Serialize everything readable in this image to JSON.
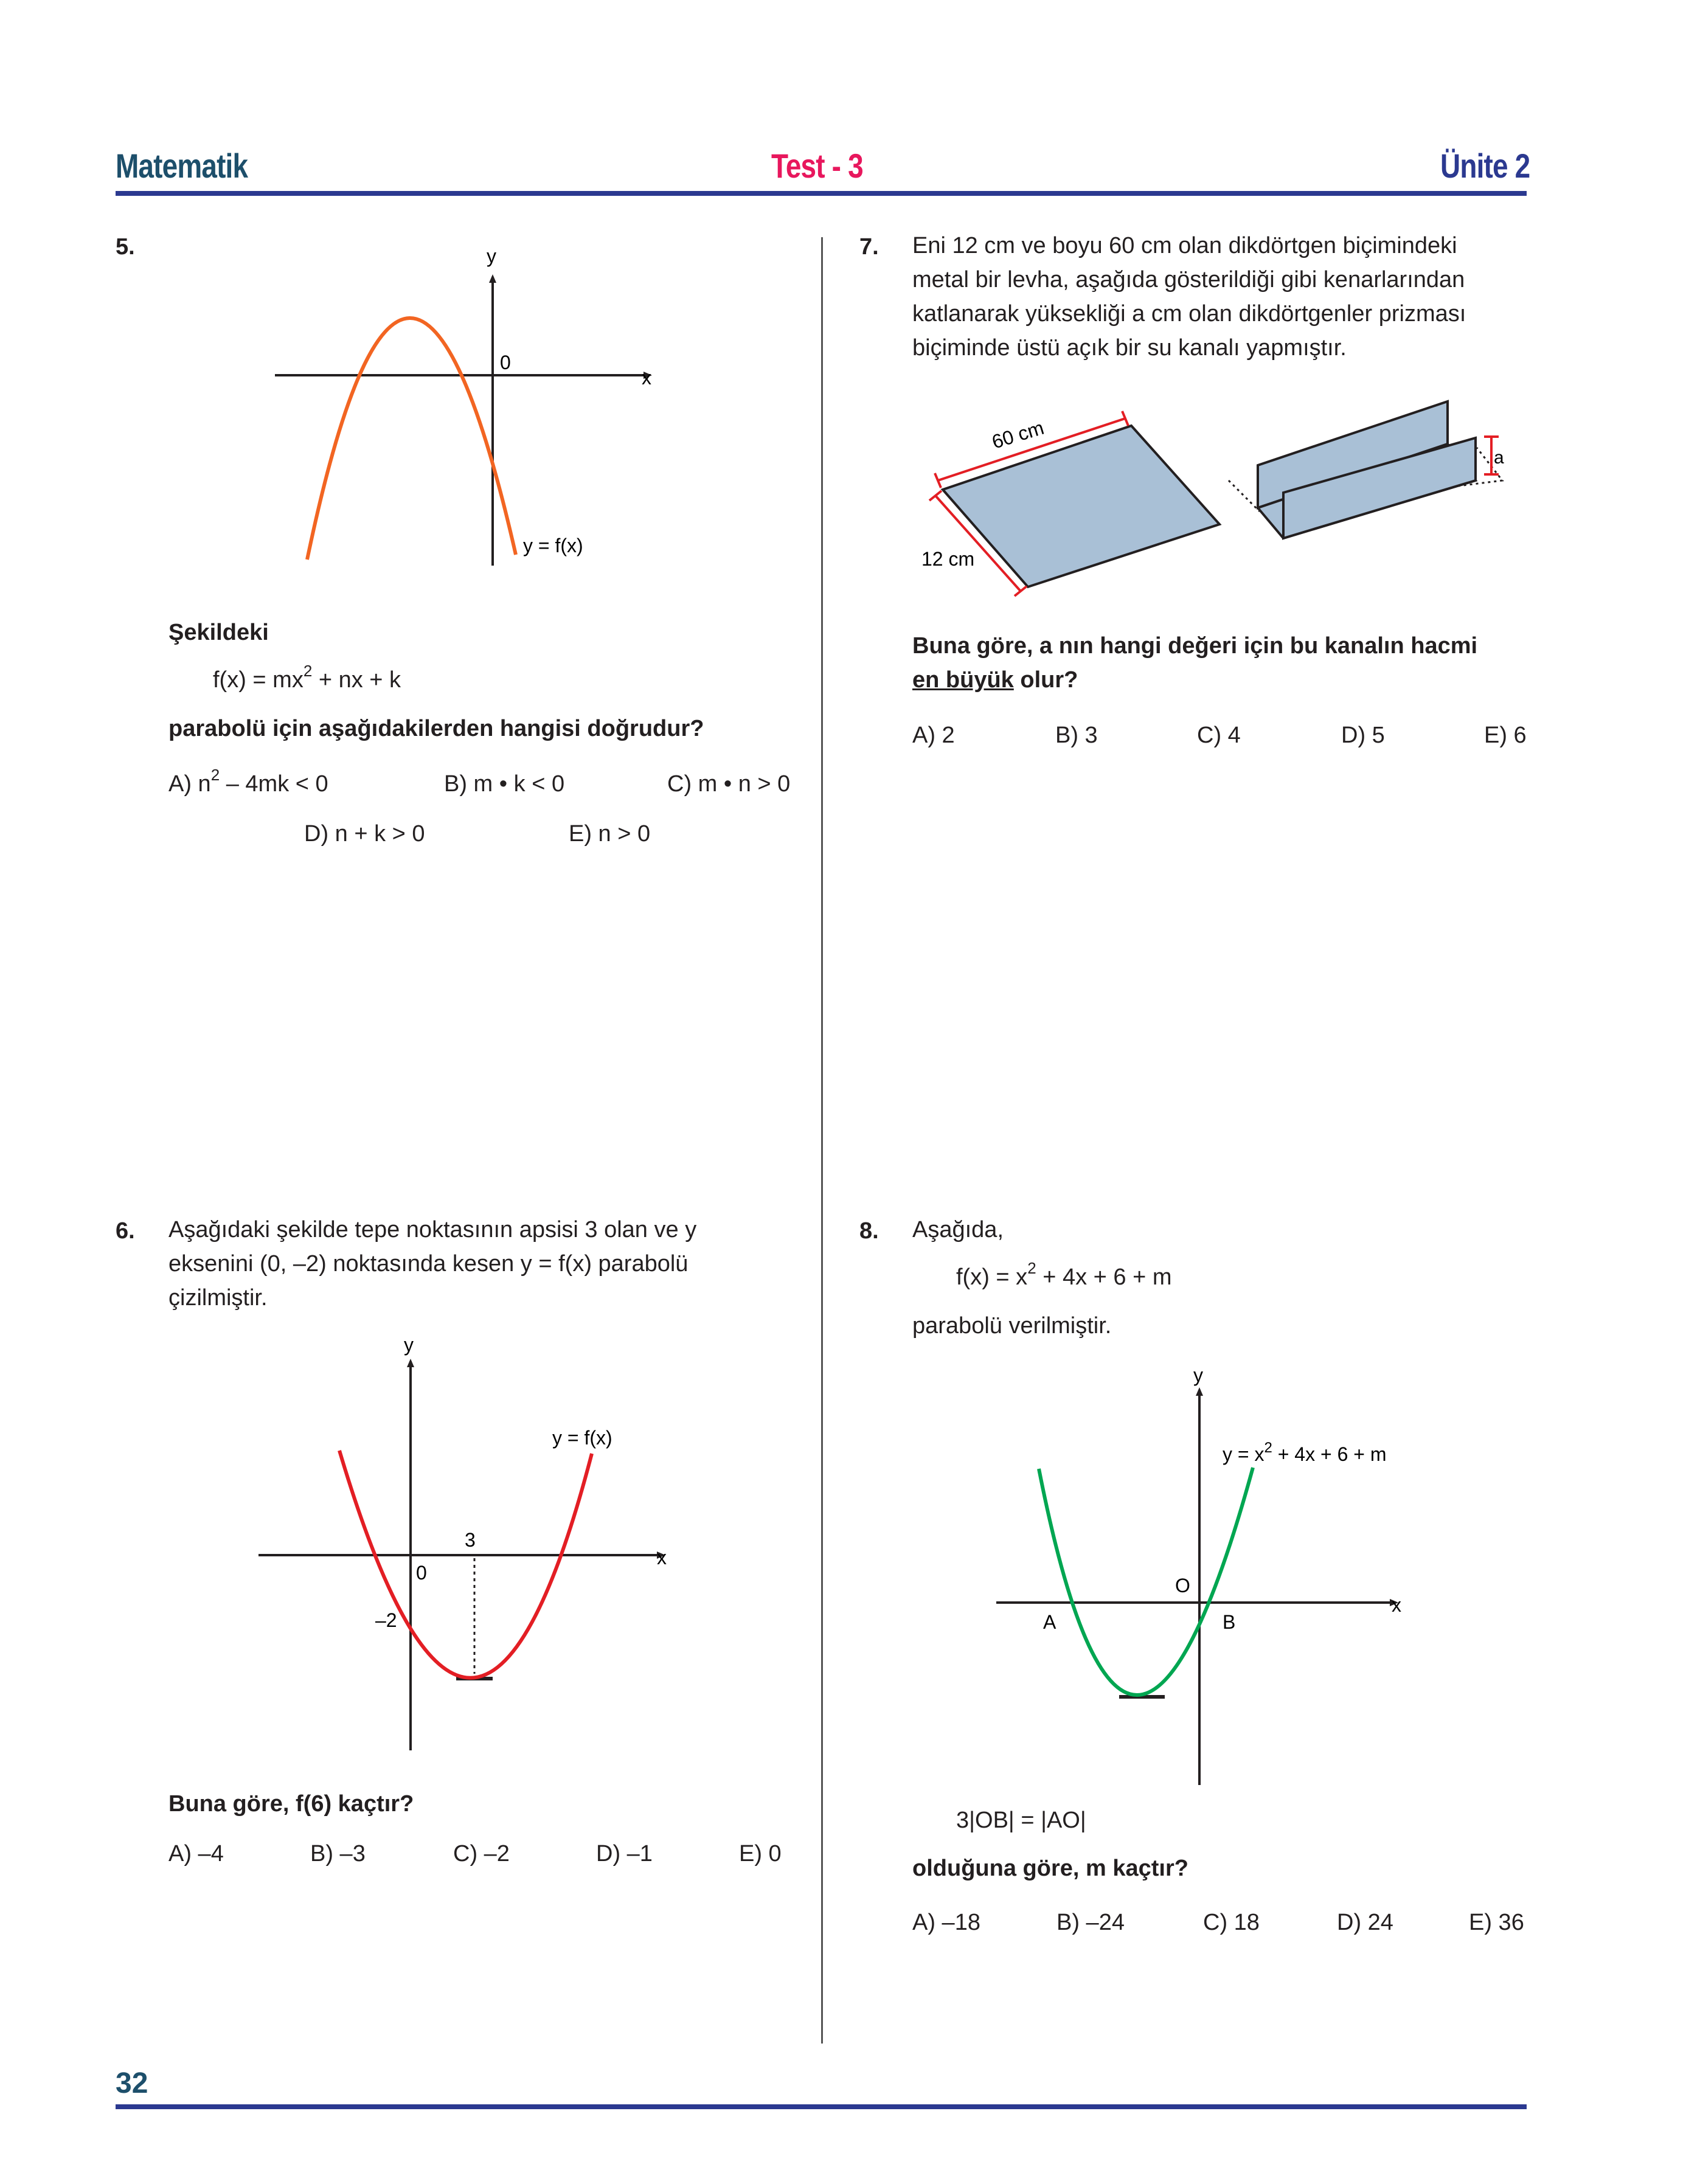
{
  "header": {
    "left": "Matematik",
    "center": "Test - 3",
    "right": "Ünite 2"
  },
  "page_number": "32",
  "q5": {
    "number": "5.",
    "graph": {
      "y_label": "y",
      "x_label": "x",
      "origin_label": "0",
      "curve_label": "y = f(x)",
      "curve_color": "#f26522"
    },
    "intro": "Şekildeki",
    "formula_pre": "f(x) = mx",
    "formula_sup": "2",
    "formula_post": " + nx + k",
    "question": "parabolü için aşağıdakilerden hangisi doğrudur?",
    "options": {
      "a_pre": "A) n",
      "a_sup": "2",
      "a_post": " – 4mk < 0",
      "b": "B) m • k < 0",
      "c": "C) m • n > 0",
      "d": "D) n + k > 0",
      "e": "E) n > 0"
    }
  },
  "q6": {
    "number": "6.",
    "text_line1": "Aşağıdaki şekilde tepe noktasının apsisi 3 olan ve y",
    "text_line2": "eksenini (0, –2) noktasında kesen y = f(x) parabolü",
    "text_line3": "çizilmiştir.",
    "graph": {
      "y_label": "y",
      "x_label": "x",
      "origin_label": "0",
      "vertex_x_label": "3",
      "y_intercept_label": "–2",
      "curve_label": "y = f(x)",
      "curve_color": "#e31e24"
    },
    "question": "Buna göre, f(6) kaçtır?",
    "options": [
      "A) –4",
      "B) –3",
      "C) –2",
      "D) –1",
      "E) 0"
    ]
  },
  "q7": {
    "number": "7.",
    "text_line1": "Eni 12 cm ve boyu 60 cm olan dikdörtgen biçimindeki",
    "text_line2": "metal bir levha, aşağıda gösterildiği gibi kenarlarından",
    "text_line3": "katlanarak yüksekliği a cm olan dikdörtgenler prizması",
    "text_line4": "biçiminde üstü açık bir su kanalı yapmıştır.",
    "figure": {
      "length_label": "60 cm",
      "width_label": "12 cm",
      "height_label": "a",
      "sheet_color": "#a9c0d6",
      "dimension_color": "#e31e24"
    },
    "question_line1": "Buna göre, a nın hangi değeri için bu kanalın hacmi",
    "question_underlined": "en büyük",
    "question_line2_rest": " olur?",
    "options": [
      "A) 2",
      "B) 3",
      "C) 4",
      "D) 5",
      "E) 6"
    ]
  },
  "q8": {
    "number": "8.",
    "intro": "Aşağıda,",
    "formula_pre": "f(x) = x",
    "formula_sup": "2",
    "formula_post": " + 4x + 6 + m",
    "after_formula": "parabolü verilmiştir.",
    "graph": {
      "y_label": "y",
      "x_label": "x",
      "origin_label": "O",
      "point_a": "A",
      "point_b": "B",
      "curve_label_pre": "y = x",
      "curve_label_sup": "2",
      "curve_label_post": " + 4x + 6 + m",
      "curve_color": "#00a651"
    },
    "condition": "3|OB| = |AO|",
    "question": "olduğuna göre, m kaçtır?",
    "options": [
      "A) –18",
      "B) –24",
      "C) 18",
      "D) 24",
      "E) 36"
    ]
  }
}
